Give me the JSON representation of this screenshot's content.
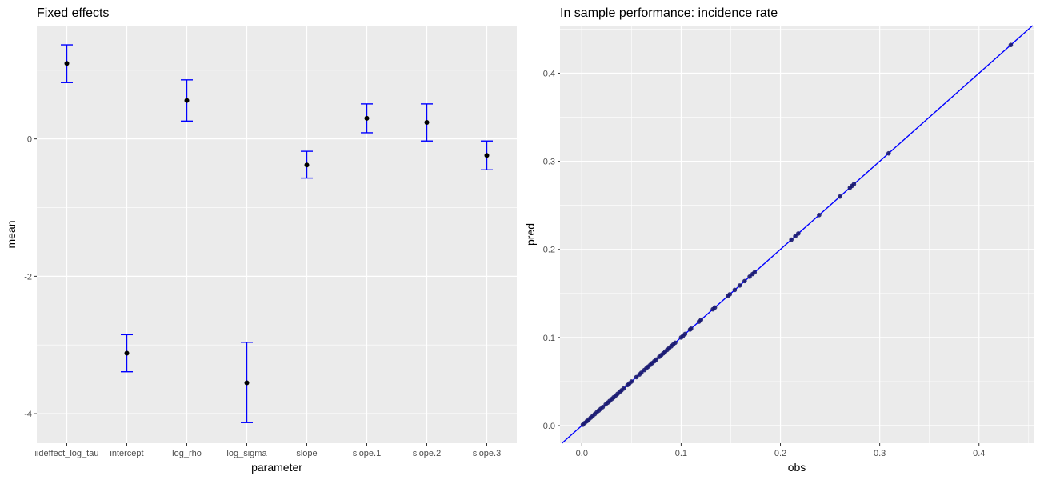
{
  "chart_data": [
    {
      "type": "errorbar",
      "title": "Fixed effects",
      "xlabel": "parameter",
      "ylabel": "mean",
      "categories": [
        "iideffect_log_tau",
        "intercept",
        "log_rho",
        "log_sigma",
        "slope",
        "slope.1",
        "slope.2",
        "slope.3"
      ],
      "means": [
        1.1,
        -3.12,
        0.56,
        -3.55,
        -0.38,
        0.3,
        0.24,
        -0.24
      ],
      "lower": [
        0.82,
        -3.39,
        0.26,
        -4.13,
        -0.57,
        0.09,
        -0.03,
        -0.45
      ],
      "upper": [
        1.37,
        -2.85,
        0.86,
        -2.96,
        -0.18,
        0.51,
        0.51,
        -0.03
      ],
      "ylim": [
        -4.43,
        1.65
      ],
      "yticks": [
        -4,
        -2,
        0
      ],
      "ytick_labels": [
        "-4",
        "-2",
        "0"
      ],
      "colors": {
        "errorbar": "#0000ff",
        "point": "#000000",
        "panel": "#ebebeb",
        "grid": "#ffffff"
      }
    },
    {
      "type": "scatter",
      "title": "In sample performance: incidence rate",
      "xlabel": "obs",
      "ylabel": "pred",
      "xlim": [
        -0.022,
        0.455
      ],
      "ylim": [
        -0.02,
        0.454
      ],
      "xticks": [
        0.0,
        0.1,
        0.2,
        0.3,
        0.4
      ],
      "xtick_labels": [
        "0.0",
        "0.1",
        "0.2",
        "0.3",
        "0.4"
      ],
      "yticks": [
        0.0,
        0.1,
        0.2,
        0.3,
        0.4
      ],
      "ytick_labels": [
        "0.0",
        "0.1",
        "0.2",
        "0.3",
        "0.4"
      ],
      "reference_line": {
        "slope": 1,
        "intercept": 0,
        "color": "#0000ff"
      },
      "points": [
        0.001,
        0.003,
        0.005,
        0.007,
        0.009,
        0.011,
        0.013,
        0.015,
        0.017,
        0.019,
        0.021,
        0.024,
        0.026,
        0.028,
        0.03,
        0.032,
        0.034,
        0.036,
        0.038,
        0.04,
        0.042,
        0.046,
        0.048,
        0.05,
        0.055,
        0.058,
        0.06,
        0.063,
        0.065,
        0.067,
        0.069,
        0.071,
        0.073,
        0.075,
        0.078,
        0.08,
        0.082,
        0.084,
        0.086,
        0.088,
        0.09,
        0.092,
        0.094,
        0.1,
        0.102,
        0.104,
        0.109,
        0.11,
        0.118,
        0.12,
        0.132,
        0.134,
        0.147,
        0.149,
        0.154,
        0.159,
        0.164,
        0.169,
        0.172,
        0.174,
        0.211,
        0.215,
        0.218,
        0.239,
        0.26,
        0.27,
        0.272,
        0.274,
        0.309,
        0.432
      ],
      "colors": {
        "point": "#191970",
        "panel": "#ebebeb",
        "grid": "#ffffff"
      }
    }
  ]
}
